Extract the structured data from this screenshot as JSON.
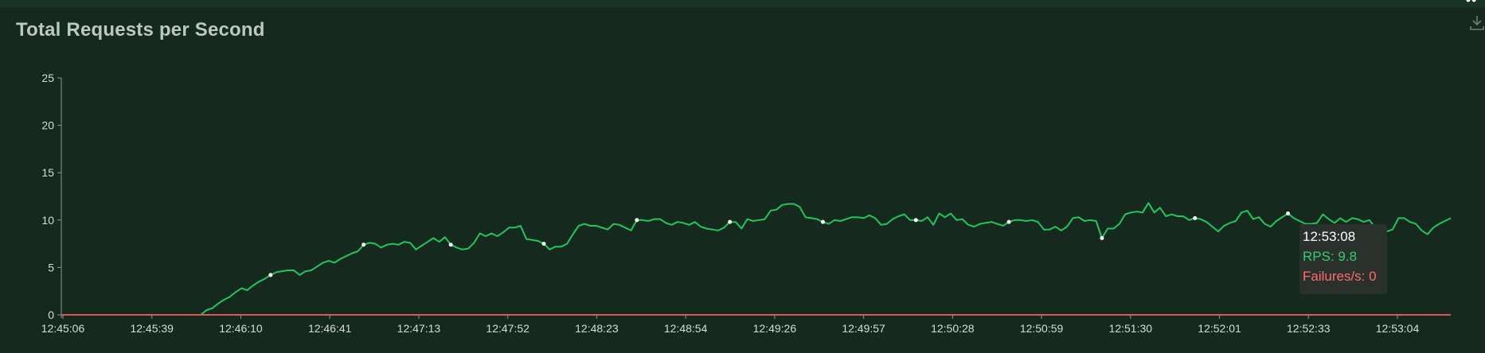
{
  "header": {
    "title": "Total Requests per Second"
  },
  "icons": {
    "download": "download-icon"
  },
  "colors": {
    "rps": "#1fc75c",
    "failures": "#e05555",
    "axis": "#8a968f"
  },
  "tooltip": {
    "time": "12:53:08",
    "rps": "RPS: 9.8",
    "failures": "Failures/s: 0"
  },
  "chart_data": {
    "type": "line",
    "title": "Total Requests per Second",
    "xlabel": "",
    "ylabel": "",
    "ylim": [
      0,
      25
    ],
    "yticks": [
      0,
      5,
      10,
      15,
      20,
      25
    ],
    "x_tick_labels": [
      "12:45:06",
      "12:45:39",
      "12:46:10",
      "12:46:41",
      "12:47:13",
      "12:47:52",
      "12:48:23",
      "12:48:54",
      "12:49:26",
      "12:49:57",
      "12:50:28",
      "12:50:59",
      "12:51:30",
      "12:52:01",
      "12:52:33",
      "12:53:04"
    ],
    "series": [
      {
        "name": "RPS",
        "values": [
          0,
          0,
          0,
          0,
          0,
          0,
          0,
          0,
          0,
          0,
          0,
          0,
          0,
          0,
          0,
          0,
          0,
          0,
          0,
          0,
          0,
          0,
          0,
          0,
          0,
          0.5,
          0.7,
          1.2,
          1.6,
          1.9,
          2.4,
          2.8,
          2.6,
          3.1,
          3.5,
          3.8,
          4.2,
          4.5,
          4.6,
          4.7,
          4.7,
          4.2,
          4.6,
          4.7,
          5.1,
          5.5,
          5.7,
          5.5,
          5.9,
          6.2,
          6.5,
          6.7,
          7.4,
          7.6,
          7.5,
          7.1,
          7.4,
          7.5,
          7.4,
          7.7,
          7.6,
          6.9,
          7.3,
          7.7,
          8.1,
          7.7,
          8.2,
          7.4,
          7.1,
          6.9,
          7.0,
          7.6,
          8.6,
          8.3,
          8.6,
          8.3,
          8.7,
          9.2,
          9.2,
          9.4,
          8.0,
          7.9,
          7.8,
          7.5,
          6.9,
          7.2,
          7.2,
          7.5,
          8.5,
          9.4,
          9.6,
          9.4,
          9.4,
          9.2,
          9.0,
          9.6,
          9.5,
          9.2,
          8.9,
          10.0,
          10.0,
          9.9,
          10.1,
          10.1,
          9.7,
          9.5,
          9.8,
          9.7,
          9.5,
          9.8,
          9.3,
          9.1,
          9.0,
          8.9,
          9.2,
          9.8,
          9.8,
          9.1,
          10.1,
          9.9,
          10.0,
          10.1,
          11.0,
          11.1,
          11.6,
          11.7,
          11.7,
          11.4,
          10.3,
          10.2,
          10.1,
          9.8,
          9.6,
          10.0,
          9.9,
          10.1,
          10.3,
          10.3,
          10.2,
          10.5,
          10.2,
          9.5,
          9.6,
          10.1,
          10.4,
          10.6,
          10.0,
          10.0,
          9.9,
          10.3,
          9.5,
          10.7,
          10.3,
          10.7,
          10.0,
          10.1,
          9.5,
          9.3,
          9.6,
          9.7,
          9.8,
          9.6,
          9.4,
          9.8,
          10.0,
          10.0,
          9.9,
          10.0,
          9.8,
          9.0,
          9.0,
          9.3,
          8.9,
          9.3,
          10.2,
          10.3,
          9.9,
          10.0,
          9.9,
          8.1,
          9.1,
          9.1,
          9.6,
          10.6,
          10.8,
          10.9,
          10.8,
          11.8,
          10.8,
          11.3,
          10.4,
          10.6,
          10.4,
          10.4,
          10.0,
          10.2,
          10.1,
          9.8,
          9.3,
          8.8,
          9.4,
          9.7,
          9.9,
          10.8,
          11.0,
          10.1,
          10.3,
          9.6,
          9.3,
          9.9,
          10.3,
          10.7,
          10.2,
          9.9,
          9.6,
          9.6,
          9.7,
          10.6,
          10.1,
          9.7,
          10.2,
          9.8,
          10.2,
          10.1,
          9.8,
          10.0,
          9.2,
          8.5,
          8.8,
          9.0,
          10.2,
          10.2,
          9.8,
          9.6,
          8.9,
          8.5,
          9.2,
          9.6,
          9.9,
          10.2
        ]
      },
      {
        "name": "Failures/s",
        "values": [
          0,
          0
        ]
      }
    ],
    "markers": [
      0,
      0,
      0,
      0,
      0,
      0,
      0,
      0,
      0,
      0,
      0,
      0,
      0,
      0,
      0,
      0,
      0,
      0,
      0,
      0,
      0,
      0,
      0,
      0,
      0,
      0,
      0,
      0,
      0,
      0,
      0,
      0,
      0,
      0,
      0,
      0,
      1,
      0,
      0,
      0,
      0,
      0,
      0,
      0,
      0,
      0,
      0,
      0,
      0,
      0,
      0,
      0,
      1,
      0,
      0,
      0,
      0,
      0,
      0,
      0,
      0,
      0,
      0,
      0,
      0,
      0,
      0,
      1,
      0,
      0,
      0,
      0,
      0,
      0,
      0,
      0,
      0,
      0,
      0,
      0,
      0,
      0,
      0,
      1,
      0,
      0,
      0,
      0,
      0,
      0,
      0,
      0,
      0,
      0,
      0,
      0,
      0,
      0,
      0,
      1,
      0,
      0,
      0,
      0,
      0,
      0,
      0,
      0,
      0,
      0,
      0,
      0,
      0,
      0,
      0,
      1,
      0,
      0,
      0,
      0,
      0,
      0,
      0,
      0,
      0,
      0,
      0,
      0,
      0,
      0,
      0,
      1,
      0,
      0,
      0,
      0,
      0,
      0,
      0,
      0,
      0,
      0,
      0,
      0,
      0,
      0,
      0,
      1,
      0,
      0,
      0,
      0,
      0,
      0,
      0,
      0,
      0,
      0,
      0,
      0,
      0,
      0,
      0,
      1,
      0,
      0,
      0,
      0,
      0,
      0,
      0,
      0,
      0,
      0,
      0,
      0,
      0,
      0,
      0,
      1,
      0,
      0,
      0,
      0,
      0,
      0,
      0,
      0,
      0,
      0,
      0,
      0,
      0,
      0,
      0,
      1,
      0,
      0,
      0,
      0,
      0,
      0,
      0,
      0,
      0,
      0,
      0,
      0,
      0,
      0,
      0,
      1,
      0,
      0,
      0,
      0,
      0,
      0,
      0,
      0,
      0,
      0,
      0,
      0,
      0,
      0,
      0,
      1,
      0,
      0,
      0,
      0,
      0,
      0,
      0,
      0,
      0,
      0,
      0,
      0,
      0,
      0,
      1,
      1,
      0,
      0,
      0,
      0,
      0,
      0
    ],
    "cursor_index": 256,
    "grid": false,
    "legend": "none"
  }
}
